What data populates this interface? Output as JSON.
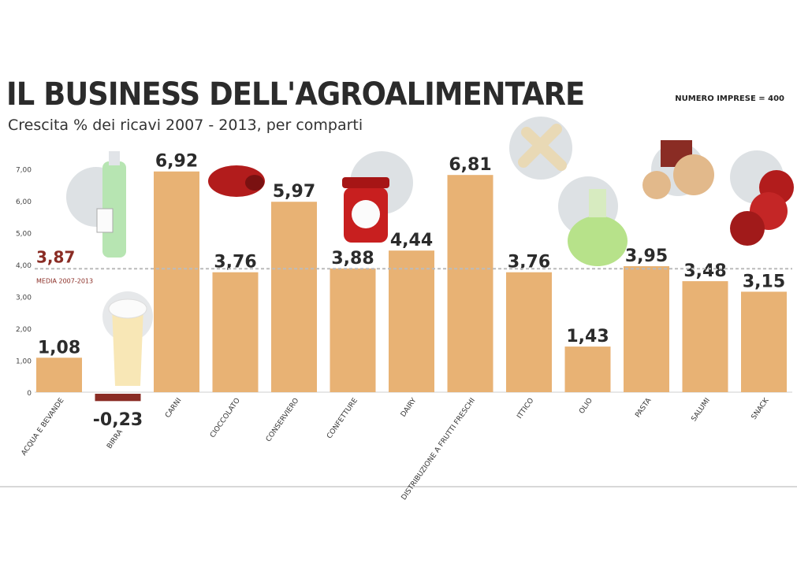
{
  "chart_data": {
    "type": "bar",
    "title": "IL BUSINESS DELL'AGROALIMENTARE",
    "subtitle": "Crescita % dei ricavi 2007 - 2013, per comparti",
    "note": "NUMERO IMPRESE = 400",
    "ylim": [
      -0.5,
      7.5
    ],
    "yticks": [
      "7,00",
      "6,00",
      "5,00",
      "4,00",
      "3,00",
      "2,00",
      "1,00",
      "0"
    ],
    "ytick_values": [
      7,
      6,
      5,
      4,
      3,
      2,
      1,
      0
    ],
    "average": {
      "value": 3.87,
      "label": "3,87",
      "caption": "MEDIA 2007-2013"
    },
    "categories": [
      "ACQUA E BEVANDE",
      "BIRRA",
      "CARNI",
      "CIOCCOLATO",
      "CONSERVIERO",
      "CONFETTURE",
      "DAIRY",
      "DISTRIBUZIONE A FRUTTI FRESCHI",
      "ITTICO",
      "OLIO",
      "PASTA",
      "SALUMI",
      "SNACK"
    ],
    "values": [
      1.08,
      -0.23,
      6.92,
      3.76,
      5.97,
      3.88,
      4.44,
      6.81,
      3.76,
      1.43,
      3.95,
      3.48,
      3.15
    ],
    "value_labels": [
      "1,08",
      "-0,23",
      "6,92",
      "3,76",
      "5,97",
      "3,88",
      "4,44",
      "6,81",
      "3,76",
      "1,43",
      "3,95",
      "3,48",
      "3,15"
    ],
    "colors": {
      "positive": "#e8b274",
      "negative": "#8a2c24",
      "average_line": "#bbbbbb",
      "average_label": "#8a2c24",
      "icon_circle": "#dde1e4"
    }
  }
}
